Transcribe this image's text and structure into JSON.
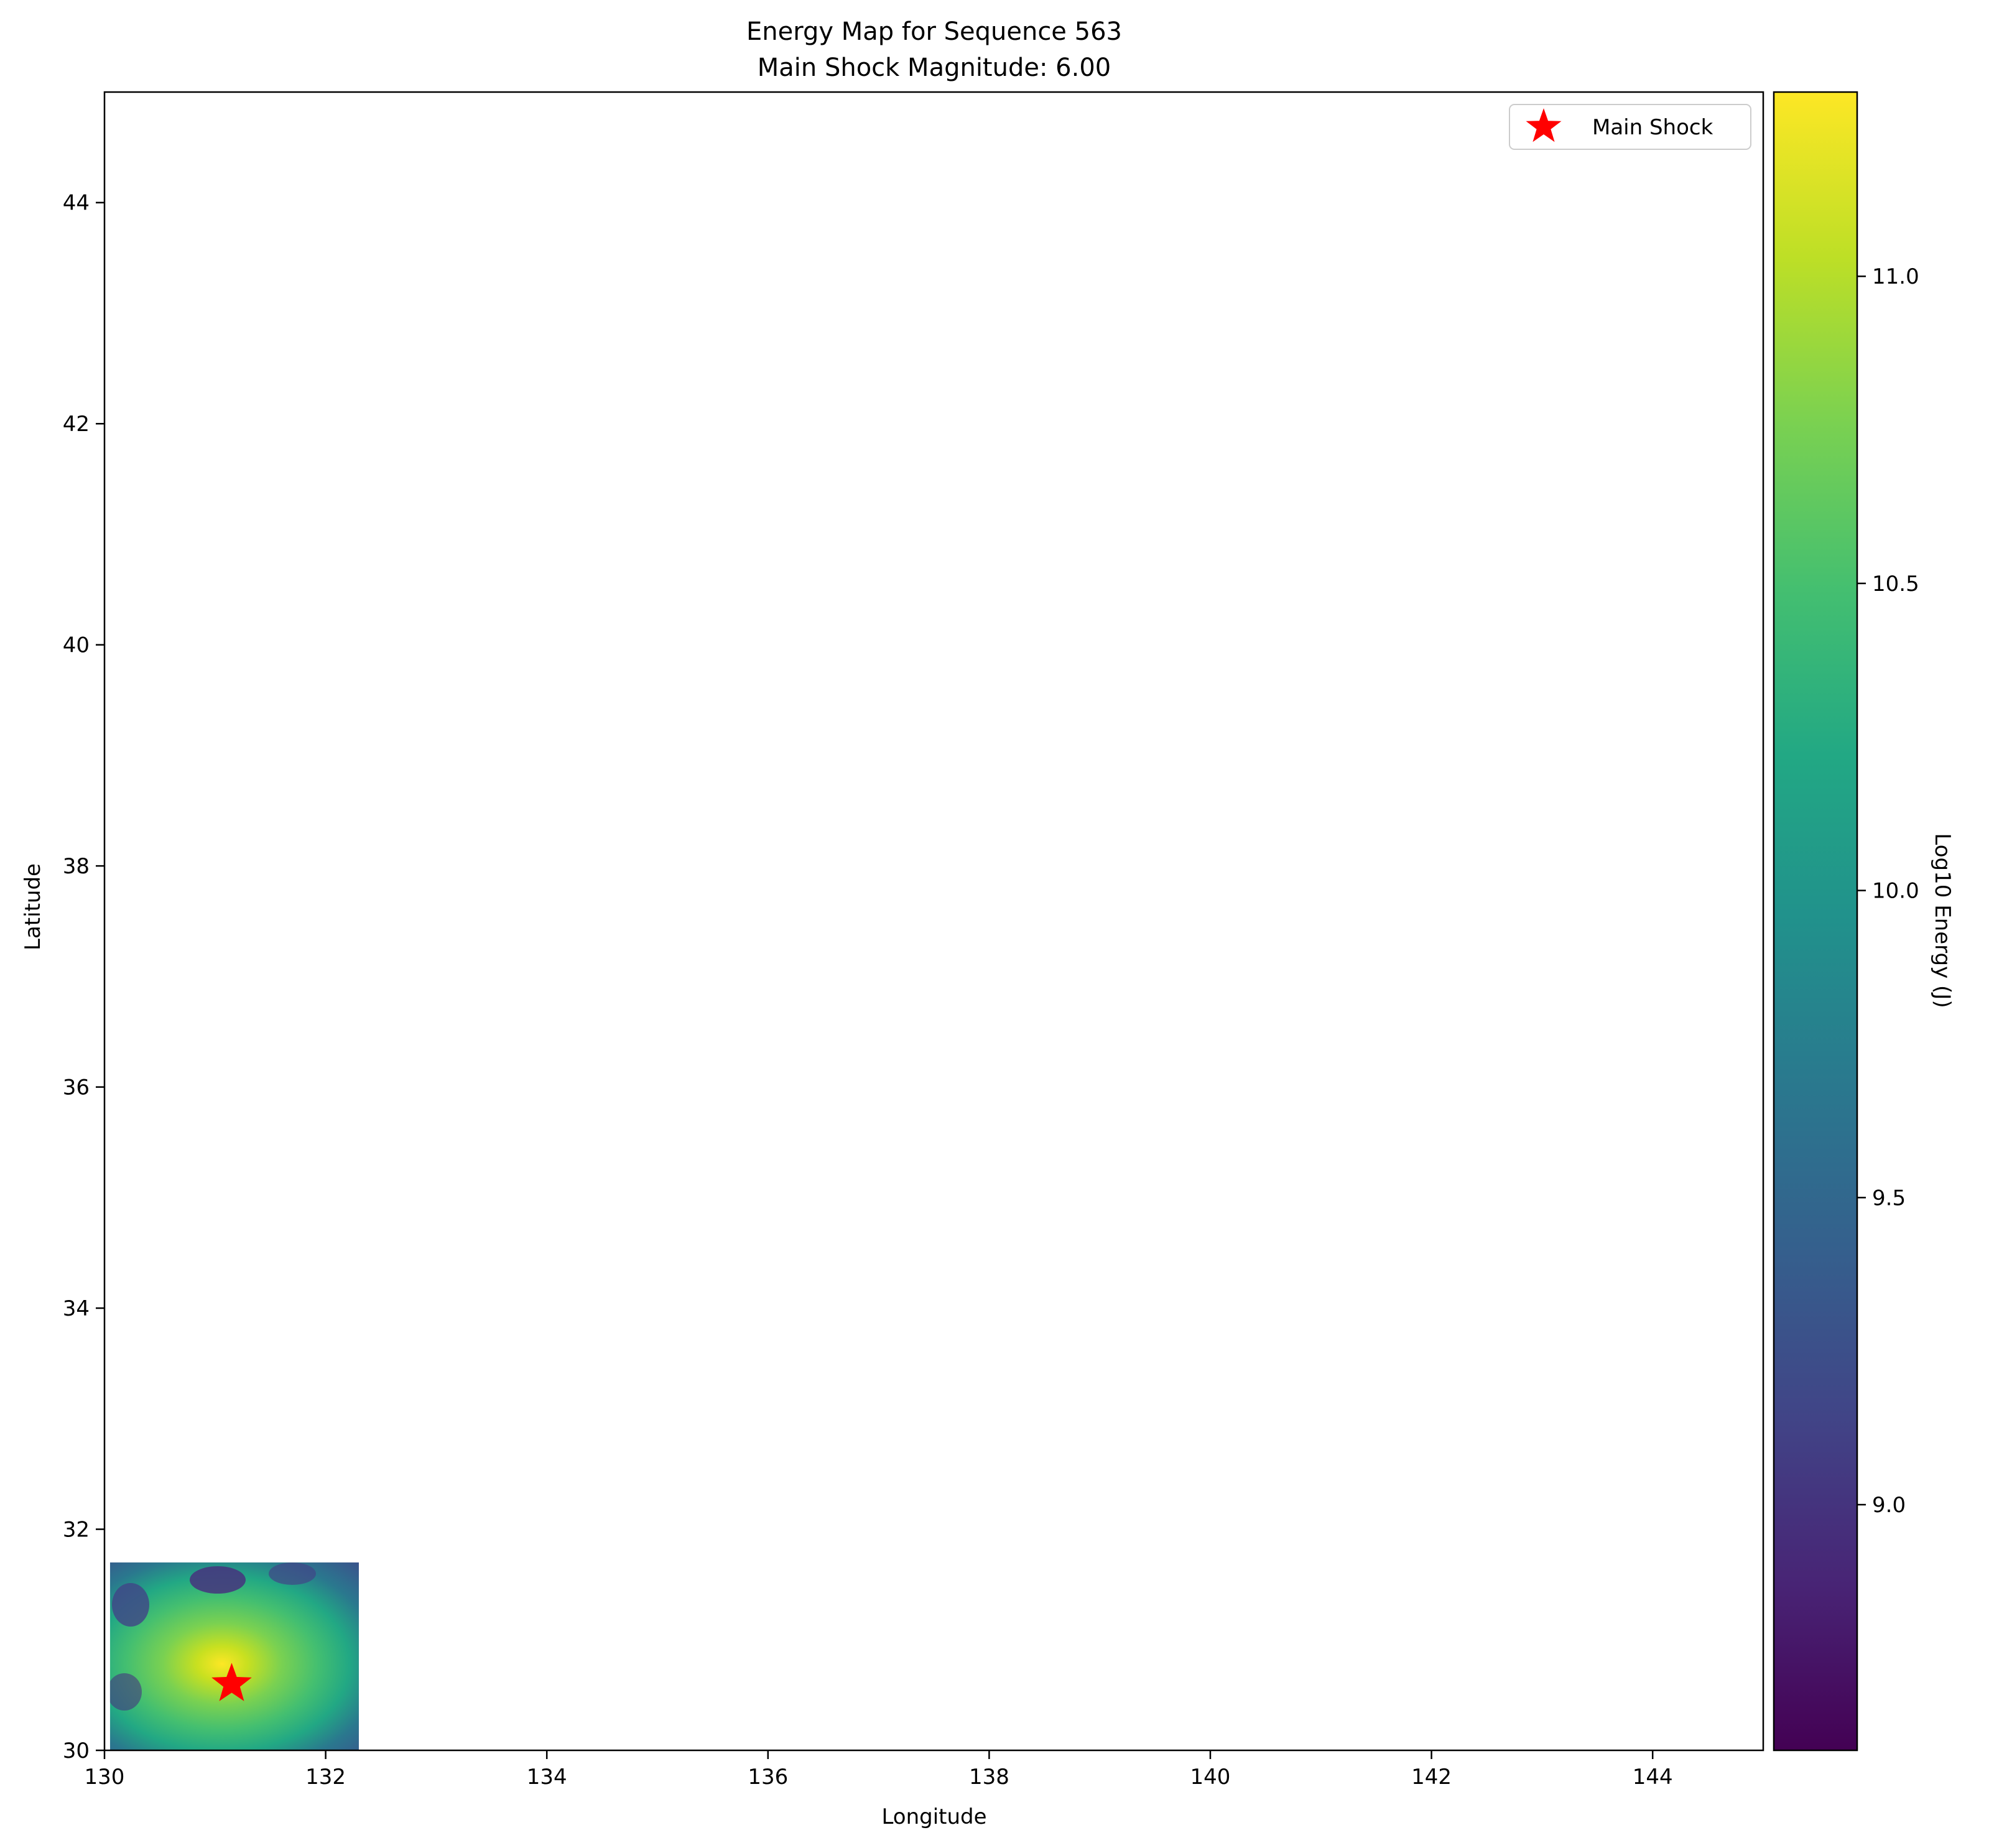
{
  "chart_data": {
    "type": "heatmap",
    "title": "Energy Map for Sequence 563",
    "subtitle": "Main Shock Magnitude: 6.00",
    "xlabel": "Longitude",
    "ylabel": "Latitude",
    "xlim": [
      130,
      145
    ],
    "ylim": [
      30,
      45
    ],
    "x_ticks": [
      130,
      132,
      134,
      136,
      138,
      140,
      142,
      144
    ],
    "y_ticks": [
      30,
      32,
      34,
      36,
      38,
      40,
      42,
      44
    ],
    "heatmap_extent": {
      "lon": [
        130.05,
        132.3
      ],
      "lat": [
        30,
        31.7
      ]
    },
    "heatmap_peak": {
      "lon": 131.05,
      "lat": 30.75,
      "value": 11.25
    },
    "heatmap_min_value": 8.9,
    "colormap": "viridis",
    "colorbar": {
      "label": "Log10 Energy (J)",
      "range": [
        8.6,
        11.3
      ],
      "ticks": [
        9.0,
        9.5,
        10.0,
        10.5,
        11.0
      ],
      "tick_labels": [
        "9.0",
        "9.5",
        "10.0",
        "10.5",
        "11.0"
      ]
    },
    "main_shock": {
      "lon": 131.15,
      "lat": 30.6,
      "color": "#ff0000",
      "marker": "star-icon"
    },
    "legend": {
      "placement": "top-right",
      "entries": [
        "Main Shock"
      ]
    },
    "grid": false
  }
}
